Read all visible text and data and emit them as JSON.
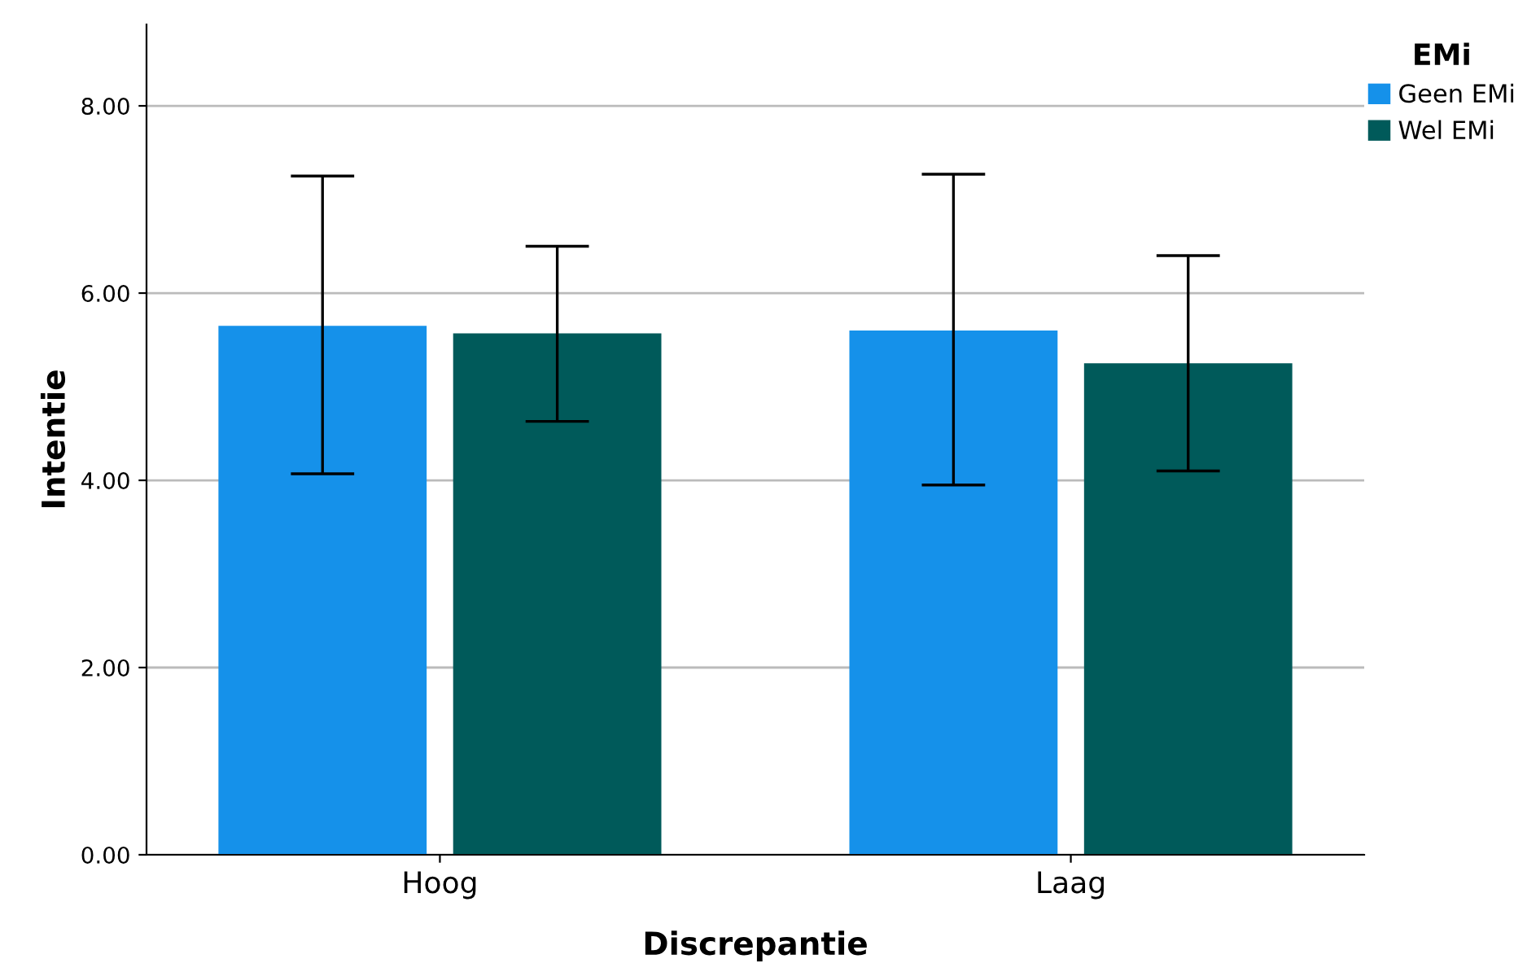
{
  "chart_data": {
    "type": "bar",
    "xlabel": "Discrepantie",
    "ylabel": "Intentie",
    "legend_title": "EMi",
    "categories": [
      "Hoog",
      "Laag"
    ],
    "series": [
      {
        "name": "Geen EMi",
        "color": "#1591ea",
        "values": [
          5.65,
          5.6
        ],
        "errors": [
          [
            4.07,
            7.25
          ],
          [
            3.95,
            7.27
          ]
        ]
      },
      {
        "name": "Wel EMi",
        "color": "#005a5a",
        "values": [
          5.57,
          5.25
        ],
        "errors": [
          [
            4.63,
            6.5
          ],
          [
            4.1,
            6.4
          ]
        ]
      }
    ],
    "ylim": [
      0,
      8.87
    ],
    "yticks": [
      {
        "value": 0,
        "label": "0.00"
      },
      {
        "value": 2,
        "label": "2.00"
      },
      {
        "value": 4,
        "label": "4.00"
      },
      {
        "value": 6,
        "label": "6.00"
      },
      {
        "value": 8,
        "label": "8.00"
      }
    ],
    "grid": "y",
    "legend": "top right"
  }
}
